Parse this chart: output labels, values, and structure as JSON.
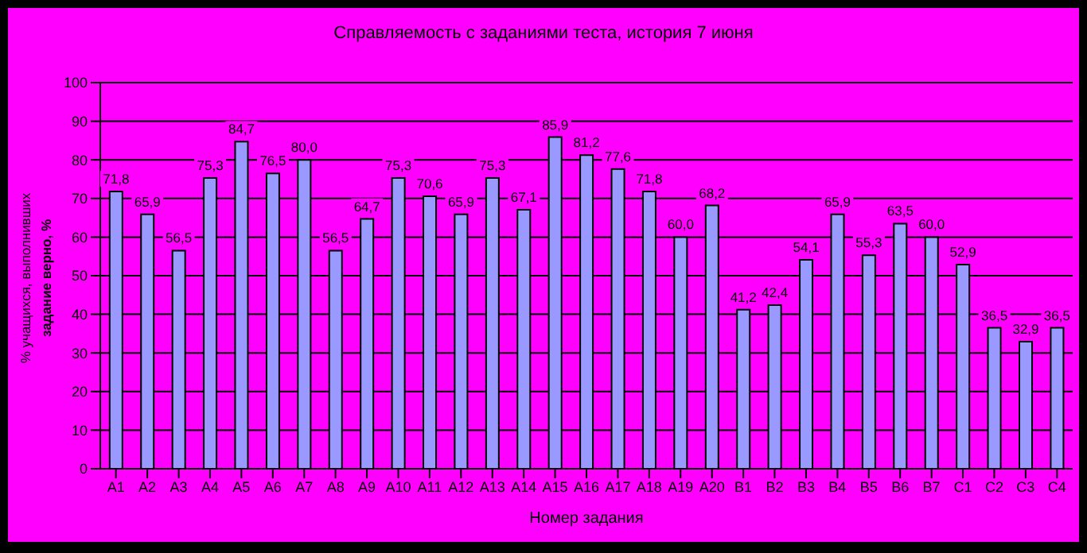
{
  "chart_data": {
    "type": "bar",
    "title": "Справляемость с заданиями теста, история 7 июня",
    "xlabel": "Номер задания",
    "ylabel": "% учащихся, выполнивших\nзадание верно, %",
    "categories": [
      "A1",
      "A2",
      "A3",
      "A4",
      "A5",
      "A6",
      "A7",
      "A8",
      "A9",
      "A10",
      "A11",
      "A12",
      "A13",
      "A14",
      "A15",
      "A16",
      "A17",
      "A18",
      "A19",
      "A20",
      "B1",
      "B2",
      "B3",
      "B4",
      "B5",
      "B6",
      "B7",
      "C1",
      "C2",
      "C3",
      "C4"
    ],
    "series": [
      {
        "color": "#9999ff",
        "values": [
          71.8,
          65.9,
          56.5,
          75.3,
          84.7,
          76.5,
          80.0,
          56.5,
          64.7,
          75.3,
          70.6,
          65.9,
          75.3,
          67.1,
          85.9,
          81.2,
          77.6,
          71.8,
          60.0,
          68.2,
          41.2,
          42.4,
          54.1,
          65.9,
          55.3,
          63.5,
          60.0,
          52.9,
          36.5,
          32.9,
          36.5
        ],
        "value_labels": [
          "71,8",
          "65,9",
          "56,5",
          "75,3",
          "84,7",
          "76,5",
          "80,0",
          "56,5",
          "64,7",
          "75,3",
          "70,6",
          "65,9",
          "75,3",
          "67,1",
          "85,9",
          "81,2",
          "77,6",
          "71,8",
          "60,0",
          "68,2",
          "41,2",
          "42,4",
          "54,1",
          "65,9",
          "55,3",
          "63,5",
          "60,0",
          "52,9",
          "36,5",
          "32,9",
          "36,5"
        ]
      }
    ],
    "ylim": [
      0,
      100
    ],
    "yticks": [
      0,
      10,
      20,
      30,
      40,
      50,
      60,
      70,
      80,
      90,
      100
    ],
    "grid": "y"
  }
}
